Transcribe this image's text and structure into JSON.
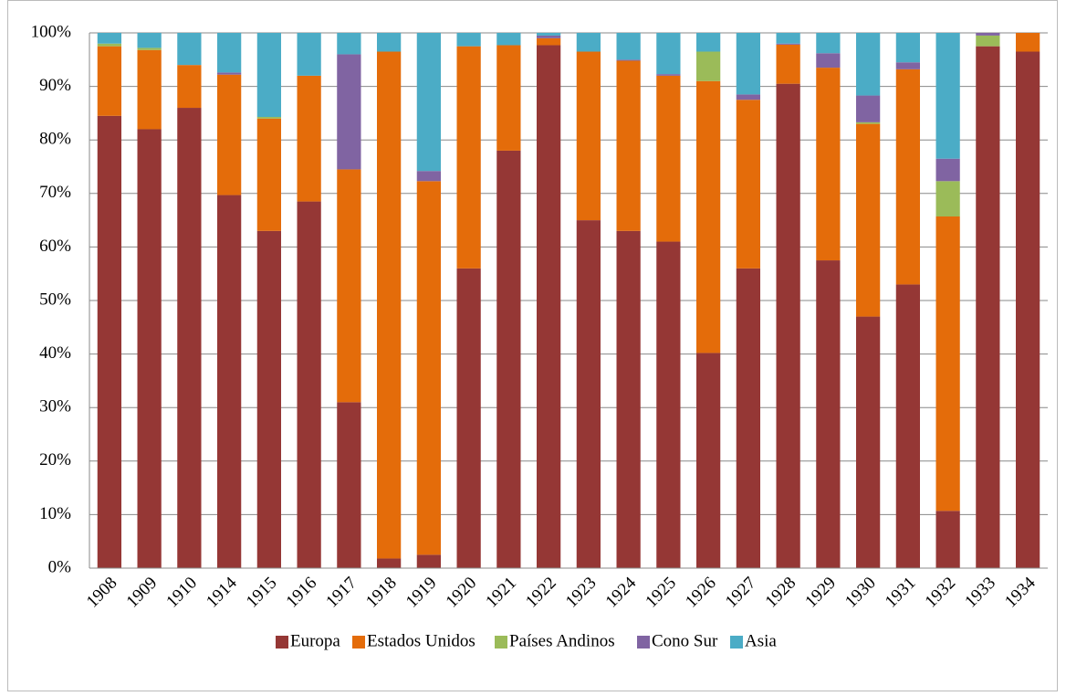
{
  "chart_data": {
    "type": "stacked_bar",
    "categories": [
      "1908",
      "1909",
      "1910",
      "1914",
      "1915",
      "1916",
      "1917",
      "1918",
      "1919",
      "1920",
      "1921",
      "1922",
      "1923",
      "1924",
      "1925",
      "1926",
      "1927",
      "1928",
      "1929",
      "1930",
      "1931",
      "1932",
      "1933",
      "1934"
    ],
    "series": [
      {
        "name": "Europa",
        "color": "#953735",
        "values": [
          84.5,
          82,
          86,
          69.7,
          63,
          68.5,
          31,
          1.8,
          2.5,
          56,
          78,
          97.7,
          65,
          63,
          61,
          40.2,
          56,
          90.5,
          57.5,
          47,
          53,
          10.7,
          97.5,
          96.5
        ]
      },
      {
        "name": "Estados Unidos",
        "color": "#e46c0a",
        "values": [
          13,
          14.8,
          8,
          22.5,
          21,
          23.5,
          43.5,
          94.7,
          69.8,
          41.5,
          19.7,
          1.3,
          31.5,
          31.8,
          31,
          50.8,
          31.5,
          7.3,
          36,
          36,
          40.2,
          55,
          0,
          3.5
        ]
      },
      {
        "name": "Países Andinos",
        "color": "#9bbb59",
        "values": [
          0.5,
          0.4,
          0,
          0,
          0.3,
          0,
          0,
          0,
          0,
          0,
          0,
          0,
          0,
          0,
          0,
          5.5,
          0,
          0,
          0,
          0.3,
          0,
          6.6,
          2,
          0
        ]
      },
      {
        "name": "Cono Sur",
        "color": "#8064a2",
        "values": [
          0,
          0,
          0,
          0.4,
          0,
          0,
          21.5,
          0,
          1.9,
          0,
          0,
          0.5,
          0,
          0.2,
          0.3,
          0,
          1,
          0.2,
          2.7,
          5,
          1.3,
          4.2,
          0.5,
          0
        ]
      },
      {
        "name": "Asia",
        "color": "#4bacc6",
        "values": [
          2,
          2.8,
          6,
          7.4,
          15.7,
          8,
          4,
          3.5,
          25.8,
          2.5,
          2.3,
          0.5,
          3.5,
          5,
          7.7,
          3.5,
          11.5,
          2,
          3.8,
          11.7,
          5.5,
          23.5,
          0,
          0
        ]
      }
    ],
    "ylim": [
      0,
      100
    ],
    "yticks": [
      {
        "value": 0,
        "label": "0%"
      },
      {
        "value": 10,
        "label": "10%"
      },
      {
        "value": 20,
        "label": "20%"
      },
      {
        "value": 30,
        "label": "30%"
      },
      {
        "value": 40,
        "label": "40%"
      },
      {
        "value": 50,
        "label": "50%"
      },
      {
        "value": 60,
        "label": "60%"
      },
      {
        "value": 70,
        "label": "70%"
      },
      {
        "value": 80,
        "label": "80%"
      },
      {
        "value": 90,
        "label": "90%"
      },
      {
        "value": 100,
        "label": "100%"
      }
    ],
    "grid": true,
    "legend": "bottom"
  }
}
